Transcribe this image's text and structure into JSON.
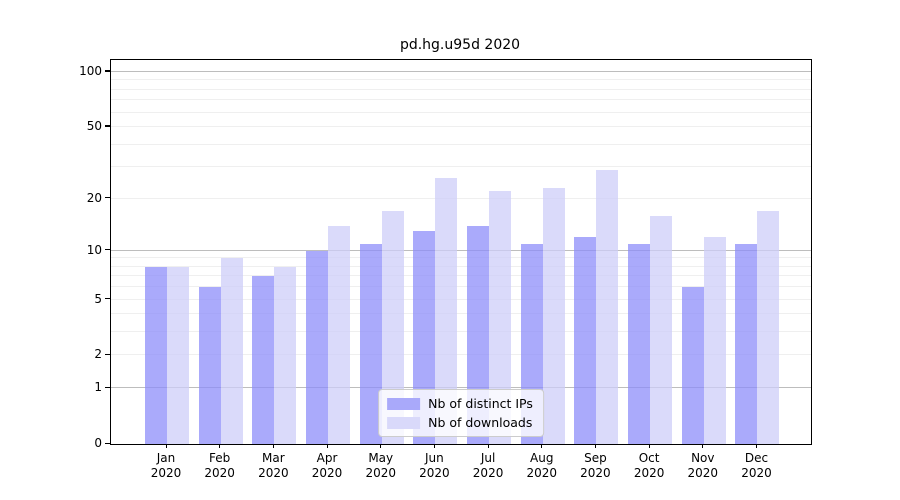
{
  "chart_data": {
    "type": "bar",
    "title": "pd.hg.u95d 2020",
    "categories": [
      "Jan",
      "Feb",
      "Mar",
      "Apr",
      "May",
      "Jun",
      "Jul",
      "Aug",
      "Sep",
      "Oct",
      "Nov",
      "Dec"
    ],
    "category_year": "2020",
    "series": [
      {
        "name": "Nb of distinct IPs",
        "color": "#a9a9fa",
        "fill": "rgba(141,141,249,0.75)",
        "values": [
          8,
          6,
          7,
          10,
          11,
          13,
          14,
          11,
          12,
          11,
          6,
          11
        ]
      },
      {
        "name": "Nb of downloads",
        "color": "#d9d9fa",
        "fill": "rgba(205,205,248,0.75)",
        "values": [
          8,
          9,
          8,
          14,
          17,
          26,
          22,
          23,
          29,
          16,
          12,
          17
        ]
      }
    ],
    "y_axis": {
      "scale": "log1p",
      "tick_labels": [
        100,
        50,
        20,
        10,
        5,
        2,
        1,
        0
      ],
      "major_gridlines": [
        1,
        10,
        100
      ],
      "minor_gridlines": [
        2,
        3,
        4,
        5,
        6,
        7,
        8,
        9,
        20,
        30,
        40,
        50,
        60,
        70,
        80,
        90
      ],
      "ymax": 116
    },
    "legend_position": "lower center inside plot",
    "grid": true
  },
  "style": {
    "major_grid_color": "#bdbdbd",
    "minor_grid_color": "#efefef",
    "axis_color": "#000000",
    "background": "#ffffff"
  }
}
